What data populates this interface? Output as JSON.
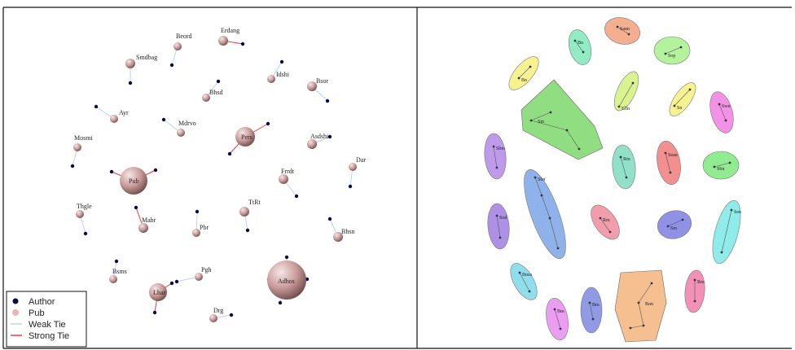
{
  "left_panel": {
    "pubs": [
      {
        "label": "Smdbag"
      },
      {
        "label": "Beord"
      },
      {
        "label": "Erdang"
      },
      {
        "label": "Idshi"
      },
      {
        "label": "Bsor"
      },
      {
        "label": "Bhsd"
      },
      {
        "label": "Ayr"
      },
      {
        "label": "Mdrvo"
      },
      {
        "label": "Pers"
      },
      {
        "label": "Mosmi"
      },
      {
        "label": "Asdshi"
      },
      {
        "label": "Dar"
      },
      {
        "label": "Pub"
      },
      {
        "label": "Frrdt"
      },
      {
        "label": "Thgle"
      },
      {
        "label": "Mahr"
      },
      {
        "label": "Pbr"
      },
      {
        "label": "TtRt"
      },
      {
        "label": "Bhsn"
      },
      {
        "label": "Bsms"
      },
      {
        "label": "Pgh"
      },
      {
        "label": "Lhar"
      },
      {
        "label": "Adhos"
      },
      {
        "label": "Drg"
      }
    ],
    "legend": {
      "items": [
        {
          "label": "Author",
          "color": "#0a0a4a"
        },
        {
          "label": "Pub",
          "color": "#e8b6b6"
        },
        {
          "label": "Weak Tie",
          "color": "#b8d4ee"
        },
        {
          "label": "Strong Tie",
          "color": "#e04040"
        }
      ]
    }
  },
  "right_panel": {
    "groups": [
      {
        "label": "Bn",
        "color": "#7ee8b8"
      },
      {
        "label": "Sann",
        "color": "#f2a07c"
      },
      {
        "label": "Sop",
        "color": "#a8f08c"
      },
      {
        "label": "Bn",
        "color": "#f4f07c"
      },
      {
        "label": "Sm",
        "color": "#7ed86c"
      },
      {
        "label": "Elln",
        "color": "#d4f07c"
      },
      {
        "label": "Sn",
        "color": "#f4f07c"
      },
      {
        "label": "Swn",
        "color": "#f07ee0"
      },
      {
        "label": "Rm",
        "color": "#7edcc0"
      },
      {
        "label": "Sbm",
        "color": "#b488e8"
      },
      {
        "label": "Sean",
        "color": "#f07c7c"
      },
      {
        "label": "Sbn",
        "color": "#7ee87c"
      },
      {
        "label": "Sbn",
        "color": "#7ca4e8"
      },
      {
        "label": "Rm",
        "color": "#f08c9c"
      },
      {
        "label": "Sm",
        "color": "#7c7ce0"
      },
      {
        "label": "Sen",
        "color": "#7ce8e8"
      },
      {
        "label": "Sod",
        "color": "#a07ce0"
      },
      {
        "label": "Bnsa",
        "color": "#7cd8e8"
      },
      {
        "label": "Bon",
        "color": "#f4b47c"
      },
      {
        "label": "Rm",
        "color": "#f07ca8"
      },
      {
        "label": "Bm",
        "color": "#e88cf0"
      },
      {
        "label": "Bm",
        "color": "#7c88e0"
      }
    ]
  }
}
